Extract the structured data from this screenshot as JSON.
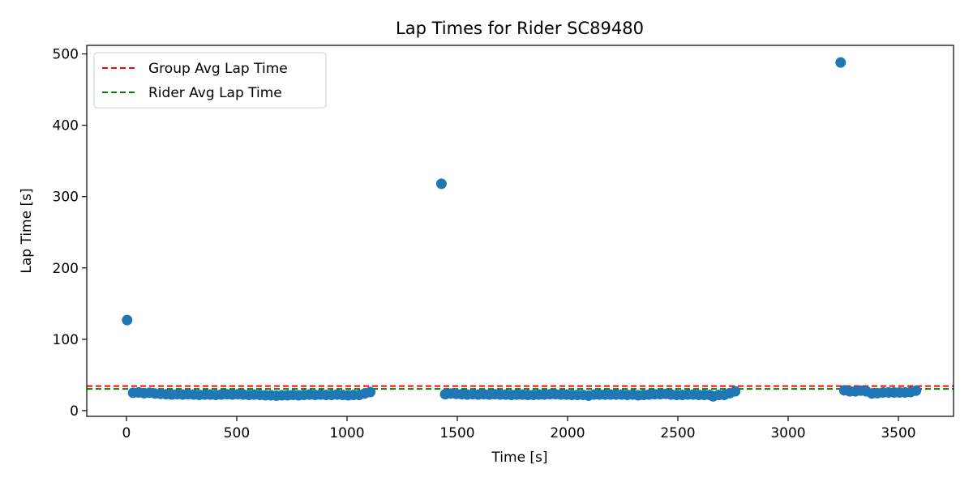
{
  "chart_data": {
    "type": "scatter",
    "title": "Lap Times for Rider SC89480",
    "xlabel": "Time [s]",
    "ylabel": "Lap Time [s]",
    "xlim": [
      -180,
      3750
    ],
    "ylim": [
      -8,
      512
    ],
    "xticks": [
      0,
      500,
      1000,
      1500,
      2000,
      2500,
      3000,
      3500
    ],
    "yticks": [
      0,
      100,
      200,
      300,
      400,
      500
    ],
    "grid": false,
    "legend_position": "top-left",
    "point_color": "#1f77b4",
    "reference_lines": [
      {
        "name": "Group Avg Lap Time",
        "y": 34.5,
        "color": "#ff0000",
        "style": "dashed"
      },
      {
        "name": "Rider Avg Lap Time",
        "y": 30.5,
        "color": "#008000",
        "style": "dashed"
      }
    ],
    "series": [
      {
        "points": [
          [
            3,
            127
          ],
          [
            30,
            25
          ],
          [
            55,
            25.5
          ],
          [
            80,
            24.5
          ],
          [
            105,
            25
          ],
          [
            130,
            24
          ],
          [
            155,
            23.5
          ],
          [
            180,
            23
          ],
          [
            205,
            22.5
          ],
          [
            230,
            23
          ],
          [
            255,
            22.5
          ],
          [
            280,
            23
          ],
          [
            305,
            22.5
          ],
          [
            330,
            22
          ],
          [
            355,
            22.5
          ],
          [
            380,
            22.5
          ],
          [
            405,
            22
          ],
          [
            430,
            22.5
          ],
          [
            455,
            23
          ],
          [
            480,
            22.5
          ],
          [
            505,
            23
          ],
          [
            530,
            22.5
          ],
          [
            555,
            22
          ],
          [
            580,
            22.5
          ],
          [
            605,
            22
          ],
          [
            630,
            21.5
          ],
          [
            655,
            21.5
          ],
          [
            680,
            21
          ],
          [
            705,
            21.5
          ],
          [
            730,
            21.5
          ],
          [
            755,
            22
          ],
          [
            780,
            21.5
          ],
          [
            805,
            22
          ],
          [
            830,
            22.5
          ],
          [
            855,
            22
          ],
          [
            880,
            22.5
          ],
          [
            905,
            22
          ],
          [
            930,
            22
          ],
          [
            955,
            22.5
          ],
          [
            980,
            22
          ],
          [
            1005,
            21.5
          ],
          [
            1030,
            22
          ],
          [
            1055,
            22
          ],
          [
            1080,
            24
          ],
          [
            1105,
            26
          ],
          [
            1428,
            318
          ],
          [
            1445,
            23
          ],
          [
            1470,
            24
          ],
          [
            1495,
            23.5
          ],
          [
            1520,
            23
          ],
          [
            1545,
            22.5
          ],
          [
            1570,
            23
          ],
          [
            1595,
            22.5
          ],
          [
            1620,
            23
          ],
          [
            1645,
            22.5
          ],
          [
            1670,
            23
          ],
          [
            1695,
            22.5
          ],
          [
            1720,
            22.5
          ],
          [
            1745,
            22
          ],
          [
            1770,
            22.5
          ],
          [
            1795,
            22.5
          ],
          [
            1820,
            22
          ],
          [
            1845,
            22
          ],
          [
            1870,
            22.5
          ],
          [
            1895,
            22.5
          ],
          [
            1920,
            23
          ],
          [
            1945,
            23
          ],
          [
            1970,
            22.5
          ],
          [
            1995,
            22.5
          ],
          [
            2020,
            22
          ],
          [
            2045,
            22
          ],
          [
            2070,
            22
          ],
          [
            2095,
            21
          ],
          [
            2120,
            22.5
          ],
          [
            2145,
            22.5
          ],
          [
            2170,
            22.5
          ],
          [
            2195,
            22.5
          ],
          [
            2220,
            22.5
          ],
          [
            2245,
            22.5
          ],
          [
            2270,
            22
          ],
          [
            2295,
            22.5
          ],
          [
            2320,
            21.5
          ],
          [
            2345,
            22
          ],
          [
            2370,
            22.5
          ],
          [
            2395,
            23
          ],
          [
            2420,
            23
          ],
          [
            2445,
            23.5
          ],
          [
            2470,
            22.5
          ],
          [
            2495,
            22
          ],
          [
            2520,
            22
          ],
          [
            2545,
            22.5
          ],
          [
            2570,
            22.5
          ],
          [
            2595,
            22
          ],
          [
            2620,
            22
          ],
          [
            2645,
            22
          ],
          [
            2660,
            20
          ],
          [
            2685,
            22
          ],
          [
            2710,
            22
          ],
          [
            2735,
            24.5
          ],
          [
            2760,
            27
          ],
          [
            3238,
            488
          ],
          [
            3255,
            28.5
          ],
          [
            3280,
            27
          ],
          [
            3305,
            27
          ],
          [
            3330,
            28
          ],
          [
            3355,
            27
          ],
          [
            3380,
            24
          ],
          [
            3405,
            24.5
          ],
          [
            3430,
            25.5
          ],
          [
            3455,
            25.5
          ],
          [
            3480,
            25.5
          ],
          [
            3505,
            25.5
          ],
          [
            3530,
            25.5
          ],
          [
            3555,
            26
          ],
          [
            3580,
            28
          ]
        ]
      }
    ]
  }
}
